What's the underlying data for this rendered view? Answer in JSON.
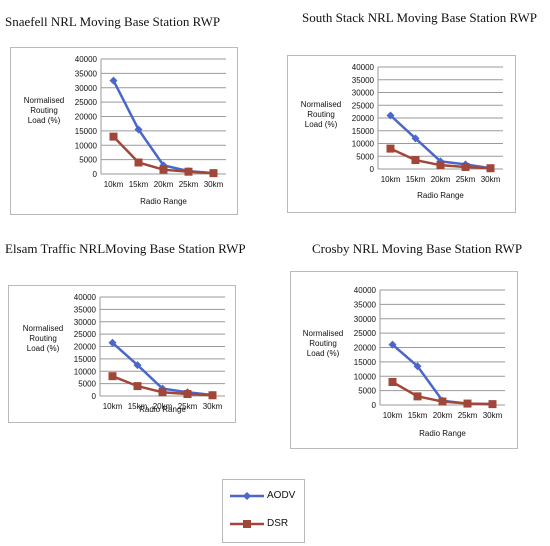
{
  "legend": {
    "aodv": "AODV",
    "dsr": "DSR"
  },
  "colors": {
    "aodv": "#4a67c9",
    "dsr": "#a1473a"
  },
  "chart_data": [
    {
      "type": "line",
      "title": "Snaefell NRL Moving Base Station RWP",
      "ylabel": [
        "Normalised",
        "Routing",
        "Load (%)"
      ],
      "xlabel": "Radio Range",
      "categories": [
        "10km",
        "15km",
        "20km",
        "25km",
        "30km"
      ],
      "yticks": [
        "0",
        "5000",
        "10000",
        "15000",
        "20000",
        "25000",
        "30000",
        "35000",
        "40000"
      ],
      "ylim": [
        0,
        40000
      ],
      "series": [
        {
          "name": "AODV",
          "values": [
            32500,
            15500,
            3000,
            1000,
            300
          ]
        },
        {
          "name": "DSR",
          "values": [
            13000,
            4000,
            1500,
            800,
            300
          ]
        }
      ]
    },
    {
      "type": "line",
      "title": "South Stack NRL Moving Base Station RWP",
      "ylabel": [
        "Normalised",
        "Routing",
        "Load (%)"
      ],
      "xlabel": "Radio Range",
      "categories": [
        "10km",
        "15km",
        "20km",
        "25km",
        "30km"
      ],
      "yticks": [
        "0",
        "5000",
        "10000",
        "15000",
        "20000",
        "25000",
        "30000",
        "35000",
        "40000"
      ],
      "ylim": [
        0,
        40000
      ],
      "series": [
        {
          "name": "AODV",
          "values": [
            21000,
            12000,
            3000,
            1800,
            300
          ]
        },
        {
          "name": "DSR",
          "values": [
            8000,
            3500,
            1500,
            800,
            300
          ]
        }
      ]
    },
    {
      "type": "line",
      "title": "Elsam Traffic NRLMoving Base Station RWP",
      "ylabel": [
        "Normalised",
        "Routing",
        "Load (%)"
      ],
      "xlabel": "Radio Range",
      "categories": [
        "10km",
        "15km",
        "20km",
        "25km",
        "30km"
      ],
      "yticks": [
        "0",
        "5000",
        "10000",
        "15000",
        "20000",
        "25000",
        "30000",
        "35000",
        "40000"
      ],
      "ylim": [
        0,
        40000
      ],
      "series": [
        {
          "name": "AODV",
          "values": [
            21500,
            12500,
            3000,
            1500,
            400
          ]
        },
        {
          "name": "DSR",
          "values": [
            8000,
            4000,
            1500,
            800,
            300
          ]
        }
      ]
    },
    {
      "type": "line",
      "title": "Crosby NRL Moving Base Station RWP",
      "ylabel": [
        "Normalised",
        "Routing",
        "Load (%)"
      ],
      "xlabel": "Radio Range",
      "categories": [
        "10km",
        "15km",
        "20km",
        "25km",
        "30km"
      ],
      "yticks": [
        "0",
        "5000",
        "10000",
        "15000",
        "20000",
        "25000",
        "30000",
        "35000",
        "40000"
      ],
      "ylim": [
        0,
        40000
      ],
      "series": [
        {
          "name": "AODV",
          "values": [
            21000,
            13500,
            1500,
            500,
            300
          ]
        },
        {
          "name": "DSR",
          "values": [
            8000,
            3000,
            1200,
            500,
            300
          ]
        }
      ]
    }
  ]
}
